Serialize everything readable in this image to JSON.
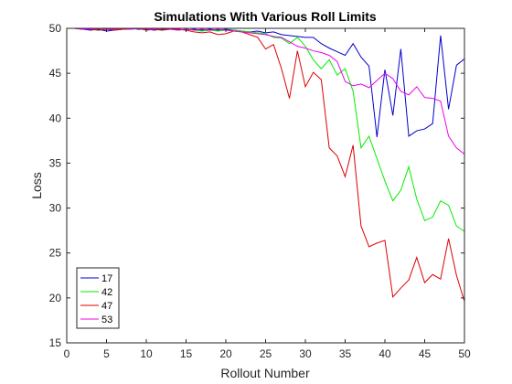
{
  "chart_data": {
    "type": "line",
    "title": "Simulations With Various Roll Limits",
    "xlabel": "Rollout Number",
    "ylabel": "Loss",
    "xlim": [
      0,
      50
    ],
    "ylim": [
      15,
      50
    ],
    "xticks": [
      "0",
      "5",
      "10",
      "15",
      "20",
      "25",
      "30",
      "35",
      "40",
      "45",
      "50"
    ],
    "yticks": [
      "15",
      "20",
      "25",
      "30",
      "35",
      "40",
      "45",
      "50"
    ],
    "legend_position": "bottom-left",
    "grid": false,
    "series": [
      {
        "name": "17",
        "color": "#0000cc",
        "x": [
          0,
          1,
          2,
          3,
          4,
          5,
          6,
          7,
          8,
          9,
          10,
          11,
          12,
          13,
          14,
          15,
          16,
          17,
          18,
          19,
          20,
          21,
          22,
          23,
          24,
          25,
          26,
          27,
          28,
          29,
          30,
          31,
          32,
          33,
          34,
          35,
          36,
          37,
          38,
          39,
          40,
          41,
          42,
          43,
          44,
          45,
          46,
          47,
          48,
          49,
          50
        ],
        "values": [
          50,
          50,
          49.9,
          49.8,
          49.9,
          49.7,
          49.8,
          49.9,
          50,
          49.9,
          49.9,
          49.8,
          49.9,
          50,
          49.9,
          49.8,
          49.9,
          49.8,
          49.9,
          49.8,
          49.9,
          49.8,
          49.7,
          49.6,
          49.7,
          49.5,
          49.6,
          49.3,
          49.2,
          49.1,
          49.0,
          49.0,
          48.3,
          47.8,
          47.4,
          47.0,
          48.3,
          46.8,
          45.8,
          37.9,
          45.4,
          40.3,
          47.7,
          38.0,
          38.6,
          38.8,
          39.4,
          49.2,
          41.0,
          45.9,
          46.6
        ]
      },
      {
        "name": "42",
        "color": "#00ee00",
        "x": [
          0,
          1,
          2,
          3,
          4,
          5,
          6,
          7,
          8,
          9,
          10,
          11,
          12,
          13,
          14,
          15,
          16,
          17,
          18,
          19,
          20,
          21,
          22,
          23,
          24,
          25,
          26,
          27,
          28,
          29,
          30,
          31,
          32,
          33,
          34,
          35,
          36,
          37,
          38,
          39,
          40,
          41,
          42,
          43,
          44,
          45,
          46,
          47,
          48,
          49,
          50
        ],
        "values": [
          50,
          50,
          49.9,
          49.9,
          49.8,
          49.9,
          49.8,
          49.9,
          49.9,
          50,
          49.8,
          49.9,
          49.8,
          49.9,
          49.8,
          49.9,
          49.8,
          49.7,
          49.8,
          49.7,
          49.8,
          49.8,
          49.7,
          49.6,
          49.5,
          49.4,
          49.0,
          48.9,
          48.3,
          49.0,
          48.0,
          46.5,
          45.5,
          46.5,
          44.8,
          45.5,
          43.0,
          36.7,
          38.0,
          35.5,
          33.0,
          30.8,
          32.0,
          34.6,
          31.0,
          28.6,
          29.0,
          30.8,
          30.3,
          28.0,
          27.4
        ]
      },
      {
        "name": "47",
        "color": "#dd0000",
        "x": [
          0,
          1,
          2,
          3,
          4,
          5,
          6,
          7,
          8,
          9,
          10,
          11,
          12,
          13,
          14,
          15,
          16,
          17,
          18,
          19,
          20,
          21,
          22,
          23,
          24,
          25,
          26,
          27,
          28,
          29,
          30,
          31,
          32,
          33,
          34,
          35,
          36,
          37,
          38,
          39,
          40,
          41,
          42,
          43,
          44,
          45,
          46,
          47,
          48,
          49,
          50
        ],
        "values": [
          50,
          50,
          49.9,
          49.9,
          49.8,
          49.9,
          49.8,
          49.9,
          49.9,
          50,
          49.8,
          49.9,
          49.8,
          49.9,
          49.9,
          49.8,
          49.6,
          49.5,
          49.6,
          49.3,
          49.4,
          49.7,
          49.6,
          49.3,
          49.0,
          47.7,
          48.2,
          45.5,
          42.2,
          47.5,
          43.5,
          45.1,
          44.3,
          36.7,
          35.8,
          33.5,
          37.0,
          28.0,
          25.7,
          26.1,
          26.4,
          20.1,
          21.1,
          22.0,
          24.5,
          21.7,
          22.6,
          22.1,
          26.6,
          22.5,
          19.6
        ]
      },
      {
        "name": "53",
        "color": "#ee00ee",
        "x": [
          0,
          1,
          2,
          3,
          4,
          5,
          6,
          7,
          8,
          9,
          10,
          11,
          12,
          13,
          14,
          15,
          16,
          17,
          18,
          19,
          20,
          21,
          22,
          23,
          24,
          25,
          26,
          27,
          28,
          29,
          30,
          31,
          32,
          33,
          34,
          35,
          36,
          37,
          38,
          39,
          40,
          41,
          42,
          43,
          44,
          45,
          46,
          47,
          48,
          49,
          50
        ],
        "values": [
          50,
          50,
          49.9,
          49.9,
          50,
          49.9,
          49.9,
          50,
          49.9,
          50,
          49.9,
          49.9,
          50,
          49.9,
          49.8,
          49.9,
          49.8,
          49.9,
          49.8,
          49.9,
          49.8,
          49.7,
          49.6,
          49.5,
          49.4,
          49.3,
          49.1,
          49.0,
          48.5,
          48.0,
          47.8,
          47.5,
          47.3,
          47.0,
          46.3,
          44.1,
          43.6,
          43.8,
          43.4,
          44.2,
          45.0,
          44.4,
          43.0,
          42.6,
          43.5,
          42.3,
          42.2,
          41.9,
          38.0,
          36.7,
          36.0
        ]
      }
    ]
  }
}
